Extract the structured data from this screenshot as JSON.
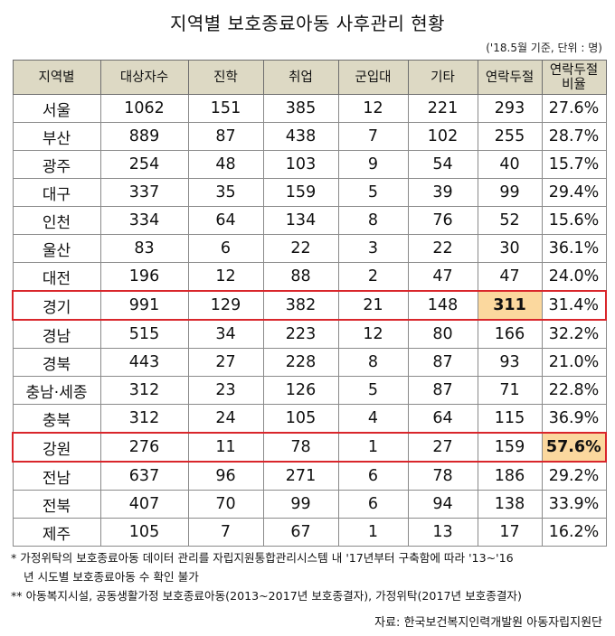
{
  "title": "지역별 보호종료아동 사후관리 현황",
  "unit_note": "('18.5월 기준, 단위 : 명)",
  "table": {
    "headers": [
      "지역별",
      "대상자수",
      "진학",
      "취업",
      "군입대",
      "기타",
      "연락두절",
      "연락두절\n비율"
    ],
    "rows": [
      [
        "서울",
        "1062",
        "151",
        "385",
        "12",
        "221",
        "293",
        "27.6%"
      ],
      [
        "부산",
        "889",
        "87",
        "438",
        "7",
        "102",
        "255",
        "28.7%"
      ],
      [
        "광주",
        "254",
        "48",
        "103",
        "9",
        "54",
        "40",
        "15.7%"
      ],
      [
        "대구",
        "337",
        "35",
        "159",
        "5",
        "39",
        "99",
        "29.4%"
      ],
      [
        "인천",
        "334",
        "64",
        "134",
        "8",
        "76",
        "52",
        "15.6%"
      ],
      [
        "울산",
        "83",
        "6",
        "22",
        "3",
        "22",
        "30",
        "36.1%"
      ],
      [
        "대전",
        "196",
        "12",
        "88",
        "2",
        "47",
        "47",
        "24.0%"
      ],
      [
        "경기",
        "991",
        "129",
        "382",
        "21",
        "148",
        "311",
        "31.4%"
      ],
      [
        "경남",
        "515",
        "34",
        "223",
        "12",
        "80",
        "166",
        "32.2%"
      ],
      [
        "경북",
        "443",
        "27",
        "228",
        "8",
        "87",
        "93",
        "21.0%"
      ],
      [
        "충남·세종",
        "312",
        "23",
        "126",
        "5",
        "87",
        "71",
        "22.8%"
      ],
      [
        "충북",
        "312",
        "24",
        "105",
        "4",
        "64",
        "115",
        "36.9%"
      ],
      [
        "강원",
        "276",
        "11",
        "78",
        "1",
        "27",
        "159",
        "57.6%"
      ],
      [
        "전남",
        "637",
        "96",
        "271",
        "6",
        "78",
        "186",
        "29.2%"
      ],
      [
        "전북",
        "407",
        "70",
        "99",
        "6",
        "94",
        "138",
        "33.9%"
      ],
      [
        "제주",
        "105",
        "7",
        "67",
        "1",
        "13",
        "17",
        "16.2%"
      ]
    ],
    "highlight_rows": [
      7,
      12
    ],
    "highlight_cells": [
      [
        7,
        6
      ],
      [
        12,
        7
      ]
    ],
    "colors": {
      "header_bg": "#ddd9c4",
      "highlight_border": "#d9262b",
      "highlight_cell_bg": "#fbd89e"
    }
  },
  "notes": {
    "note1_line1": "* 가정위탁의 보호종료아동 데이터 관리를 자립지원통합관리시스템 내 '17년부터 구축함에 따라 '13~'16",
    "note1_line2": "년 시도별 보호종료아동 수 확인 불가",
    "note2": "** 아동복지시설, 공동생활가정 보호종료아동(2013~2017년 보호종결자), 가정위탁(2017년 보호종결자)"
  },
  "source": "자료: 한국보건복지인력개발원 아동자립지원단"
}
